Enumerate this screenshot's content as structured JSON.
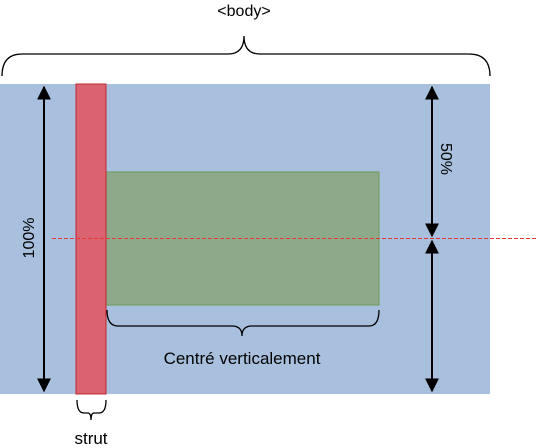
{
  "labels": {
    "body_tag": "<body>",
    "full_height": "100%",
    "half_height": "50%",
    "centered": "Centré verticalement",
    "strut": "strut"
  },
  "colors": {
    "body_area": "#a8c0de",
    "strut_fill": "#d9636f",
    "strut_stroke": "#c0262e",
    "centered_fill": "#8ea98a",
    "centered_stroke": "#6a9a55",
    "midline": "#e53935",
    "arrow": "#000000"
  }
}
